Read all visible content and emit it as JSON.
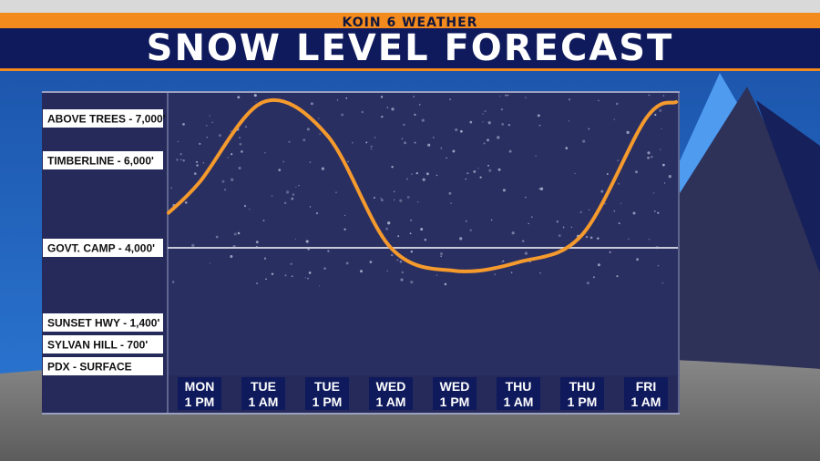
{
  "header": {
    "brand": "KOIN 6 WEATHER",
    "title": "SNOW LEVEL FORECAST"
  },
  "colors": {
    "brand_orange": "#f28a1e",
    "title_navy": "#0f1a5c",
    "plot_bg": "#252a5a",
    "curve": "#f59a2c",
    "background_blue": "#1f5fb6"
  },
  "chart_data": {
    "type": "line",
    "title": "SNOW LEVEL FORECAST",
    "xlabel": "",
    "ylabel": "",
    "categories": [
      {
        "line1": "MON",
        "line2": "1 PM"
      },
      {
        "line1": "TUE",
        "line2": "1 AM"
      },
      {
        "line1": "TUE",
        "line2": "1 PM"
      },
      {
        "line1": "WED",
        "line2": "1 AM"
      },
      {
        "line1": "WED",
        "line2": "1 PM"
      },
      {
        "line1": "THU",
        "line2": "1 AM"
      },
      {
        "line1": "THU",
        "line2": "1 PM"
      },
      {
        "line1": "FRI",
        "line2": "1 AM"
      }
    ],
    "y_levels": [
      {
        "label": "ABOVE TREES - 7,000'",
        "value": 7000
      },
      {
        "label": "TIMBERLINE - 6,000'",
        "value": 6000
      },
      {
        "label": "GOVT. CAMP - 4,000'",
        "value": 4000
      },
      {
        "label": "SUNSET HWY - 1,400'",
        "value": 1400
      },
      {
        "label": "SYLVAN HILL - 700'",
        "value": 700
      },
      {
        "label": "PDX - SURFACE",
        "value": 0
      }
    ],
    "reference_line": 4000,
    "series": [
      {
        "values": [
          5500,
          7300,
          6600,
          4000,
          3200,
          3500,
          4300,
          7000
        ]
      }
    ],
    "ylim": [
      0,
      7300
    ],
    "grid": false
  }
}
